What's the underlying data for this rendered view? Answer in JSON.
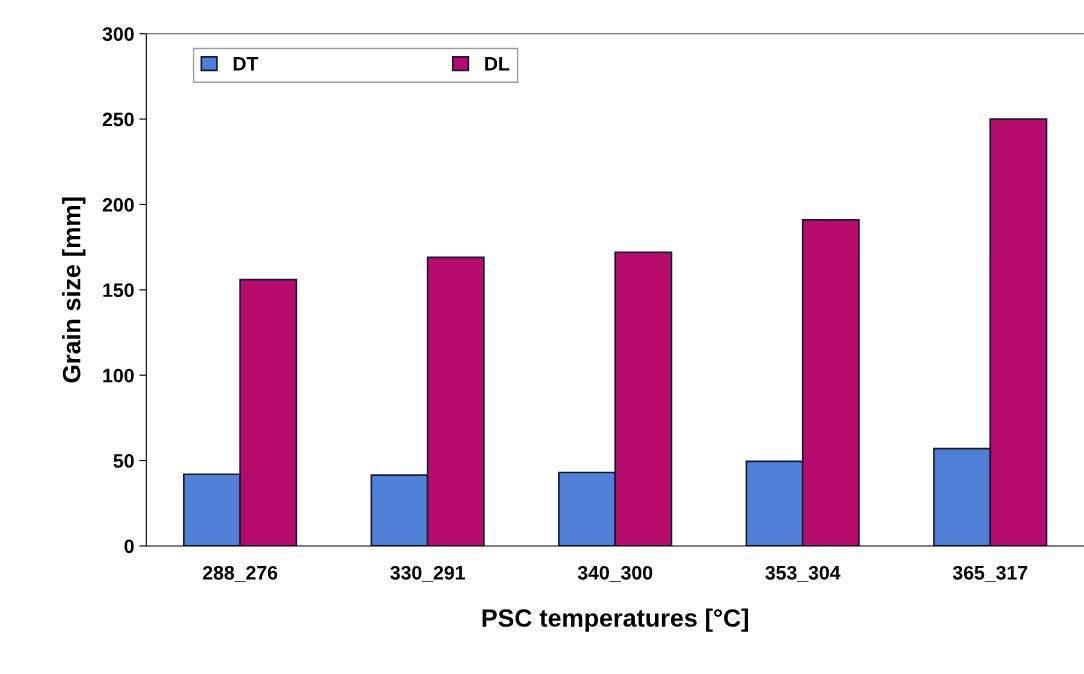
{
  "chart_data": {
    "type": "bar",
    "xlabel": "PSC temperatures [°C]",
    "ylabel": "Grain size [mm]",
    "categories": [
      "288_276",
      "330_291",
      "340_300",
      "353_304",
      "365_317"
    ],
    "series": [
      {
        "name": "DT",
        "color": "#5080d8",
        "values": [
          42,
          41.5,
          43,
          49.5,
          57
        ]
      },
      {
        "name": "DL",
        "color": "#b80c6c",
        "values": [
          156,
          169,
          172,
          191,
          250
        ]
      }
    ],
    "ylim": [
      0,
      300
    ],
    "yticks": [
      0,
      50,
      100,
      150,
      200,
      250,
      300
    ],
    "grid": false,
    "legend": "top left"
  }
}
